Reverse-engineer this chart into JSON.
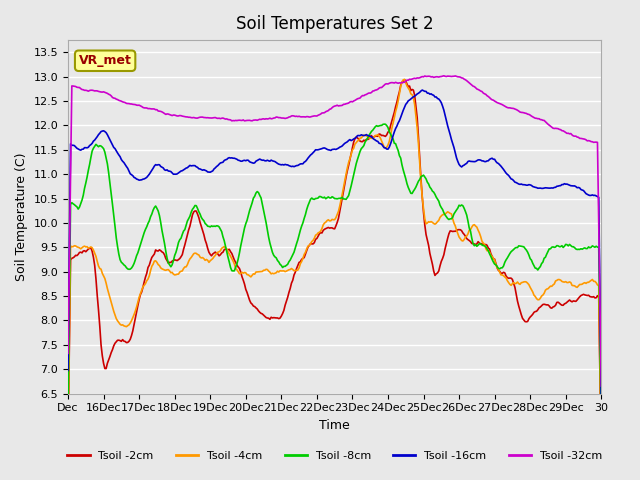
{
  "title": "Soil Temperatures Set 2",
  "xlabel": "Time",
  "ylabel": "Soil Temperature (C)",
  "ylim": [
    6.5,
    13.75
  ],
  "xlim": [
    0,
    420
  ],
  "background_color": "#e8e8e8",
  "plot_bg": "#e8e8e8",
  "grid_color": "white",
  "legend_label": "VR_met",
  "series_colors": {
    "Tsoil -2cm": "#cc0000",
    "Tsoil -4cm": "#ff9900",
    "Tsoil -8cm": "#00cc00",
    "Tsoil -16cm": "#0000cc",
    "Tsoil -32cm": "#cc00cc"
  },
  "xtick_labels": [
    "Dec",
    "16Dec",
    "17Dec",
    "18Dec",
    "19Dec",
    "20Dec",
    "21Dec",
    "22Dec",
    "23Dec",
    "24Dec",
    "25Dec",
    "26Dec",
    "27Dec",
    "28Dec",
    "29Dec",
    "30"
  ],
  "xtick_positions": [
    0,
    28,
    56,
    84,
    112,
    140,
    168,
    196,
    224,
    252,
    280,
    308,
    336,
    364,
    392,
    420
  ]
}
